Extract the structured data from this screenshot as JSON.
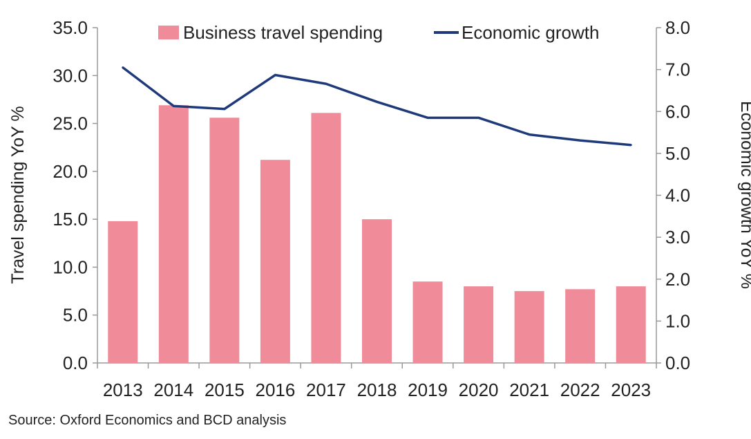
{
  "chart_data": {
    "type": "bar",
    "categories": [
      "2013",
      "2014",
      "2015",
      "2016",
      "2017",
      "2018",
      "2019",
      "2020",
      "2021",
      "2022",
      "2023"
    ],
    "series": [
      {
        "name": "Business travel spending",
        "type": "bar",
        "axis": "left",
        "color": "#F08C99",
        "values": [
          14.8,
          26.9,
          25.6,
          21.2,
          26.1,
          15.0,
          8.5,
          8.0,
          7.5,
          7.7,
          8.0
        ]
      },
      {
        "name": "Economic growth",
        "type": "line",
        "axis": "right",
        "color": "#1F3A7A",
        "values": [
          7.05,
          6.13,
          6.06,
          6.87,
          6.66,
          6.23,
          5.85,
          5.85,
          5.45,
          5.31,
          5.2
        ]
      }
    ],
    "y_left": {
      "label": "Travel spending YoY %",
      "ylim": [
        0,
        35
      ],
      "ticks": [
        "0.0",
        "5.0",
        "10.0",
        "15.0",
        "20.0",
        "25.0",
        "30.0",
        "35.0"
      ]
    },
    "y_right": {
      "label": "Economic growth YoY %",
      "ylim": [
        0,
        8
      ],
      "ticks": [
        "0.0",
        "1.0",
        "2.0",
        "3.0",
        "4.0",
        "5.0",
        "6.0",
        "7.0",
        "8.0"
      ]
    },
    "legend": {
      "placement": "top",
      "items": [
        "Business travel spending",
        "Economic growth"
      ]
    },
    "grid": false,
    "source": "Source: Oxford Economics and BCD analysis"
  }
}
